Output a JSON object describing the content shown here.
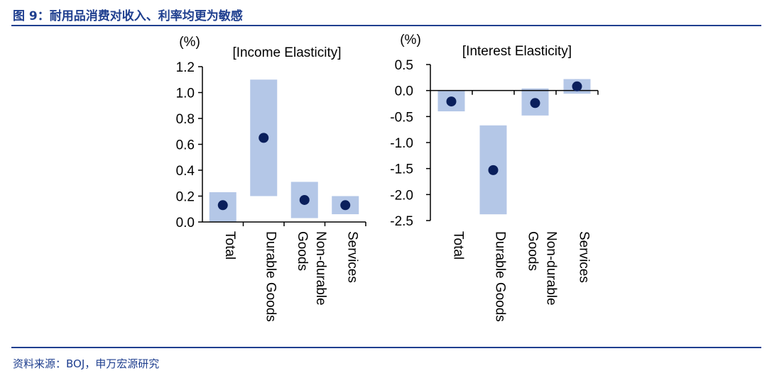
{
  "header": {
    "title": "图 9：耐用品消费对收入、利率均更为敏感"
  },
  "footer": {
    "source": "资料来源：BOJ，申万宏源研究"
  },
  "colors": {
    "accent": "#1f3f8f",
    "range_fill": "#b4c7e7",
    "point": "#0a1f5c",
    "axis": "#000000"
  },
  "chart_data": [
    {
      "type": "range-dot",
      "unit_label": "(%)",
      "panel_label": "[Income Elasticity]",
      "categories": [
        "Total",
        "Durable Goods",
        "Non-durable Goods",
        "Services"
      ],
      "category_lines": [
        [
          "Total"
        ],
        [
          "Durable Goods"
        ],
        [
          "Non-durable",
          "Goods"
        ],
        [
          "Services"
        ]
      ],
      "low": [
        0.0,
        0.2,
        0.03,
        0.06
      ],
      "high": [
        0.23,
        1.1,
        0.31,
        0.2
      ],
      "point": [
        0.13,
        0.65,
        0.17,
        0.13
      ],
      "ylim": [
        0.0,
        1.2
      ],
      "yticks": [
        0.0,
        0.2,
        0.4,
        0.6,
        0.8,
        1.0,
        1.2
      ],
      "ytick_labels": [
        "0.0",
        "0.2",
        "0.4",
        "0.6",
        "0.8",
        "1.0",
        "1.2"
      ]
    },
    {
      "type": "range-dot",
      "unit_label": "(%)",
      "panel_label": "[Interest Elasticity]",
      "categories": [
        "Total",
        "Durable Goods",
        "Non-durable Goods",
        "Services"
      ],
      "category_lines": [
        [
          "Total"
        ],
        [
          "Durable Goods"
        ],
        [
          "Non-durable",
          "Goods"
        ],
        [
          "Services"
        ]
      ],
      "low": [
        -0.4,
        -2.38,
        -0.48,
        -0.06
      ],
      "high": [
        0.0,
        -0.67,
        0.04,
        0.22
      ],
      "point": [
        -0.21,
        -1.53,
        -0.24,
        0.08
      ],
      "ylim": [
        -2.5,
        0.5
      ],
      "yticks": [
        -2.5,
        -2.0,
        -1.5,
        -1.0,
        -0.5,
        0.0,
        0.5
      ],
      "ytick_labels": [
        "-2.5",
        "-2.0",
        "-1.5",
        "-1.0",
        "-0.5",
        "0.0",
        "0.5"
      ]
    }
  ]
}
